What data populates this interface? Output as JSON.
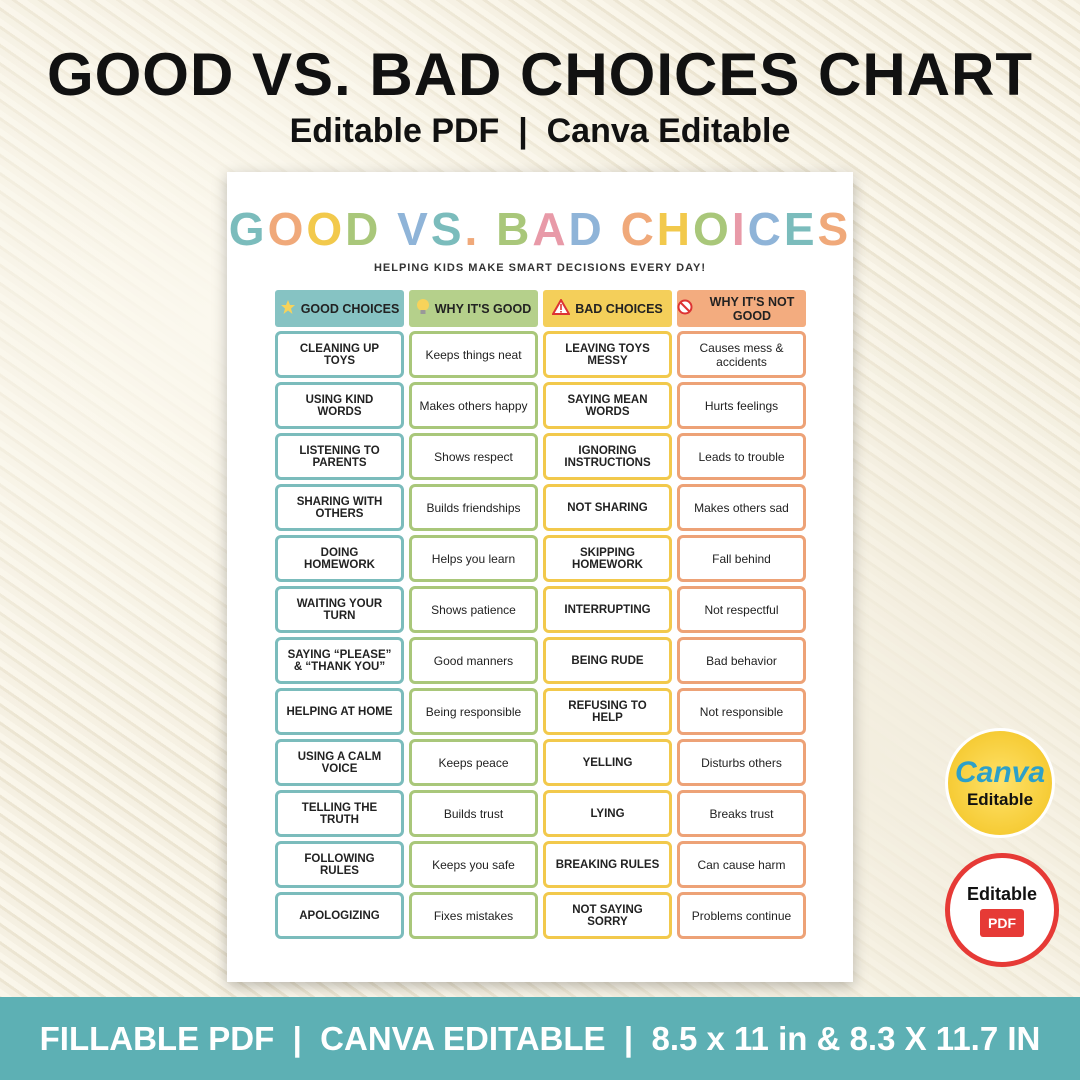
{
  "header": {
    "title": "GOOD VS. BAD CHOICES CHART",
    "subtitle": "Editable PDF  |  Canva Editable"
  },
  "sheet": {
    "title": "GOOD VS. BAD CHOICES",
    "tagline": "HELPING KIDS MAKE SMART DECISIONS EVERY DAY!"
  },
  "table": {
    "headers": [
      "GOOD CHOICES",
      "WHY IT'S GOOD",
      "BAD CHOICES",
      "WHY IT'S NOT GOOD"
    ],
    "rows": [
      [
        "CLEANING UP TOYS",
        "Keeps things neat",
        "LEAVING TOYS MESSY",
        "Causes mess & accidents"
      ],
      [
        "USING KIND WORDS",
        "Makes others happy",
        "SAYING MEAN WORDS",
        "Hurts feelings"
      ],
      [
        "LISTENING TO PARENTS",
        "Shows respect",
        "IGNORING INSTRUCTIONS",
        "Leads to trouble"
      ],
      [
        "SHARING WITH OTHERS",
        "Builds friendships",
        "NOT SHARING",
        "Makes others sad"
      ],
      [
        "DOING HOMEWORK",
        "Helps you learn",
        "SKIPPING HOMEWORK",
        "Fall behind"
      ],
      [
        "WAITING YOUR TURN",
        "Shows patience",
        "INTERRUPTING",
        "Not respectful"
      ],
      [
        "SAYING “PLEASE” & “THANK YOU”",
        "Good manners",
        "BEING RUDE",
        "Bad behavior"
      ],
      [
        "HELPING AT HOME",
        "Being responsible",
        "REFUSING TO HELP",
        "Not responsible"
      ],
      [
        "USING A CALM VOICE",
        "Keeps peace",
        "YELLING",
        "Disturbs others"
      ],
      [
        "TELLING THE TRUTH",
        "Builds trust",
        "LYING",
        "Breaks trust"
      ],
      [
        "FOLLOWING RULES",
        "Keeps you safe",
        "BREAKING RULES",
        "Can cause harm"
      ],
      [
        "APOLOGIZING",
        "Fixes mistakes",
        "NOT SAYING SORRY",
        "Problems continue"
      ]
    ]
  },
  "badges": {
    "canva": {
      "brand": "Canva",
      "label": "Editable"
    },
    "pdf": {
      "label": "Editable",
      "brand": "PDF"
    }
  },
  "footer": {
    "text": "FILLABLE PDF  |  CANVA EDITABLE  |  8.5 x 11 in & 8.3 X 11.7 IN"
  }
}
